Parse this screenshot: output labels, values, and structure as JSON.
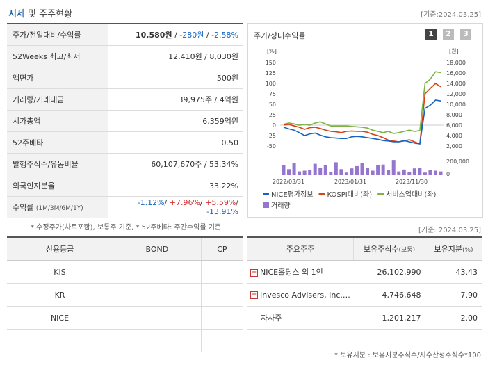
{
  "header": {
    "title_main": "시세",
    "title_sub": " 및 주주현황",
    "date": "[기준:2024.03.25]"
  },
  "stats": [
    {
      "label": "주가/전일대비/수익률"
    },
    {
      "label": "52Weeks 최고/최저",
      "value": "12,410원 / 8,030원"
    },
    {
      "label": "액면가",
      "value": "500원"
    },
    {
      "label": "거래량/거래대금",
      "value": "39,975주 / 4억원"
    },
    {
      "label": "시가총액",
      "value": "6,359억원"
    },
    {
      "label": "52주베타",
      "value": "0.50"
    },
    {
      "label": "발행주식수/유동비율",
      "value": "60,107,670주 / 53.34%"
    },
    {
      "label": "외국인지분율",
      "value": "33.22%"
    },
    {
      "label": "수익률",
      "label_sub": "(1M/3M/6M/1Y)"
    }
  ],
  "price": {
    "price": "10,580원",
    "sep1": " / ",
    "change": "-280원",
    "sep2": " / ",
    "rate": "-2.58%"
  },
  "returns": {
    "r1": "-1.12%",
    "r2": "+7.96%",
    "r3": "+5.59%",
    "r4": "-13.91%",
    "sep": "/ "
  },
  "note1": "* 수정주가(차트포함), 보통주 기준, * 52주베타: 주간수익률 기준",
  "chart": {
    "title": "주가/상대수익률",
    "pages": [
      "1",
      "2",
      "3"
    ],
    "left_unit": "[%]",
    "right_unit": "[원]",
    "left_ticks": [
      "150",
      "125",
      "100",
      "75",
      "50",
      "25",
      "0",
      "-25",
      "-50"
    ],
    "right_ticks": [
      "18,000",
      "16,000",
      "14,000",
      "12,000",
      "10,000",
      "8,000",
      "6,000",
      "4,000",
      "2,000"
    ],
    "vol_tick_top": "200,000",
    "vol_tick_bottom": "0",
    "x_labels": [
      "2022/03/31",
      "2023/01/31",
      "2023/11/30"
    ],
    "legend": [
      {
        "label": "NICE평가정보",
        "color": "#1565c0"
      },
      {
        "label": "KOSPI대비(좌)",
        "color": "#d84315"
      },
      {
        "label": "서비스업대비(좌)",
        "color": "#7cb342"
      },
      {
        "label": "거래량",
        "color": "#9575cd"
      }
    ]
  },
  "chart_data": {
    "type": "line",
    "ylim_left": [
      -50,
      150
    ],
    "ylim_right": [
      2000,
      18000
    ],
    "x_labels": [
      "2022/03/31",
      "2023/01/31",
      "2023/11/30"
    ],
    "series": [
      {
        "name": "NICE평가정보",
        "values": [
          -5,
          -9,
          -12,
          -18,
          -25,
          -21,
          -19,
          -24,
          -28,
          -30,
          -31,
          -32,
          -32,
          -28,
          -27,
          -28,
          -30,
          -32,
          -34,
          -37,
          -38,
          -40,
          -40,
          -37,
          -40,
          -43,
          -45,
          40,
          48,
          60,
          58
        ]
      },
      {
        "name": "KOSPI대비(좌)",
        "values": [
          0,
          2,
          -2,
          -5,
          -10,
          -6,
          -5,
          -8,
          -12,
          -15,
          -16,
          -18,
          -15,
          -14,
          -15,
          -15,
          -17,
          -22,
          -25,
          -30,
          -36,
          -38,
          -40,
          -38,
          -35,
          -40,
          -45,
          75,
          88,
          100,
          92
        ]
      },
      {
        "name": "서비스업대비(좌)",
        "values": [
          2,
          5,
          3,
          0,
          2,
          0,
          5,
          8,
          3,
          -2,
          -2,
          -2,
          -2,
          -3,
          -4,
          -5,
          -7,
          -12,
          -15,
          -18,
          -15,
          -20,
          -18,
          -15,
          -12,
          -15,
          -13,
          100,
          110,
          128,
          126
        ]
      }
    ],
    "volume": [
      25,
      14,
      30,
      8,
      10,
      12,
      28,
      18,
      25,
      6,
      32,
      14,
      5,
      16,
      22,
      30,
      18,
      10,
      24,
      26,
      12,
      38,
      8,
      13,
      6,
      16,
      18,
      5,
      12,
      10,
      8
    ]
  },
  "date2": "[기준: 2024.03.25]",
  "credit": {
    "headers": [
      "신용등급",
      "BOND",
      "CP"
    ],
    "rows": [
      [
        "KIS",
        "",
        ""
      ],
      [
        "KR",
        "",
        ""
      ],
      [
        "NICE",
        "",
        ""
      ],
      [
        "",
        "",
        ""
      ]
    ]
  },
  "holders": {
    "headers": [
      "주요주주",
      "보유주식수",
      "(보통)",
      "보유지분",
      "(%)"
    ],
    "rows": [
      {
        "name": "NICE홀딩스 외 1인",
        "shares": "26,102,990",
        "pct": "43.43",
        "plus": "+"
      },
      {
        "name": "Invesco Advisers, Inc.…",
        "shares": "4,746,648",
        "pct": "7.90",
        "plus": "+"
      },
      {
        "name": "자사주",
        "shares": "1,201,217",
        "pct": "2.00",
        "plus": ""
      },
      {
        "name": "",
        "shares": "",
        "pct": "",
        "plus": ""
      }
    ]
  },
  "note2": "* 보유지분 : 보유지분주식수/지수산정주식수*100"
}
